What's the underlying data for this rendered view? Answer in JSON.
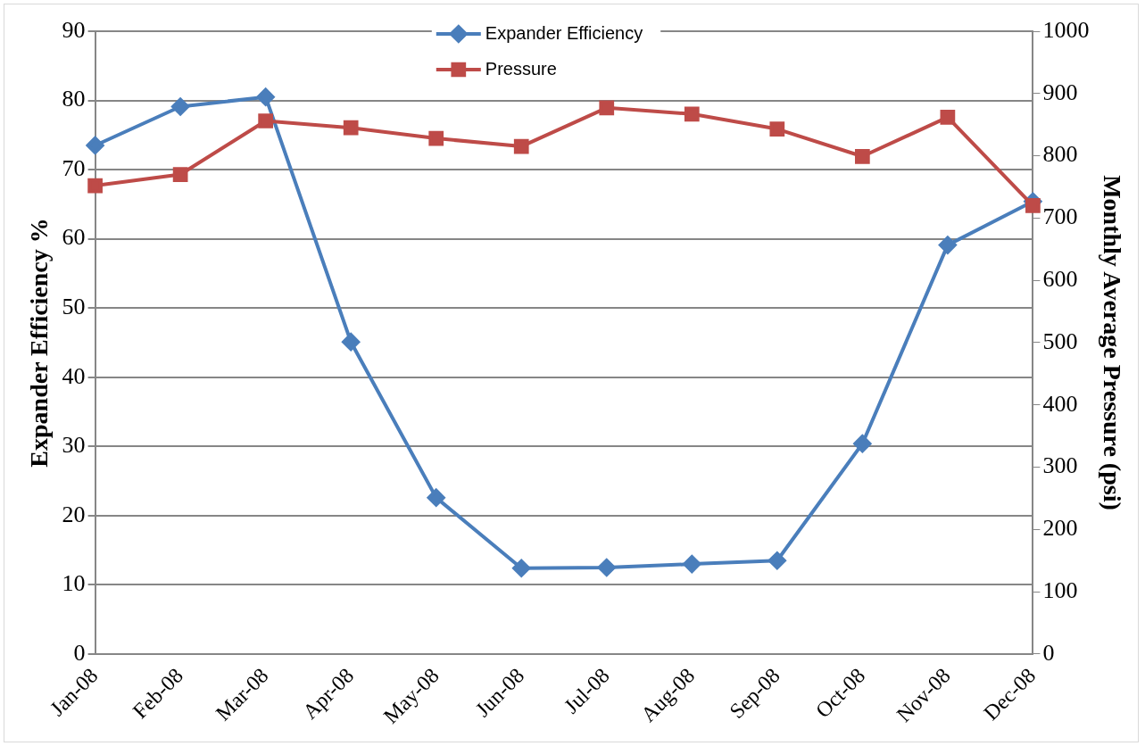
{
  "chart_data": {
    "type": "line",
    "ylabel": "Expander Efficiency %",
    "y2label": "Monthly Average Pressure (psi)",
    "categories": [
      "Jan-08",
      "Feb-08",
      "Mar-08",
      "Apr-08",
      "May-08",
      "Jun-08",
      "Jul-08",
      "Aug-08",
      "Sep-08",
      "Oct-08",
      "Nov-08",
      "Dec-08"
    ],
    "series": [
      {
        "name": "Expander Efficiency",
        "color": "#4a7ebb",
        "marker": "diamond",
        "values": [
          73.5,
          79.1,
          80.5,
          45.1,
          22.6,
          12.4,
          12.5,
          13.0,
          13.5,
          30.4,
          59.1,
          65.4
        ]
      },
      {
        "name": "Pressure",
        "color": "#be4b48",
        "marker": "square",
        "axis": "y2",
        "values": [
          752,
          770,
          856,
          845,
          828,
          815,
          877,
          867,
          843,
          799,
          862,
          720
        ]
      }
    ],
    "ylim": [
      0,
      90
    ],
    "yticks": [
      0,
      10,
      20,
      30,
      40,
      50,
      60,
      70,
      80,
      90
    ],
    "y2lim": [
      0,
      1000
    ],
    "y2ticks": [
      0,
      100,
      200,
      300,
      400,
      500,
      600,
      700,
      800,
      900,
      1000
    ],
    "grid": "y",
    "legend": "top",
    "line_style": "solid"
  }
}
